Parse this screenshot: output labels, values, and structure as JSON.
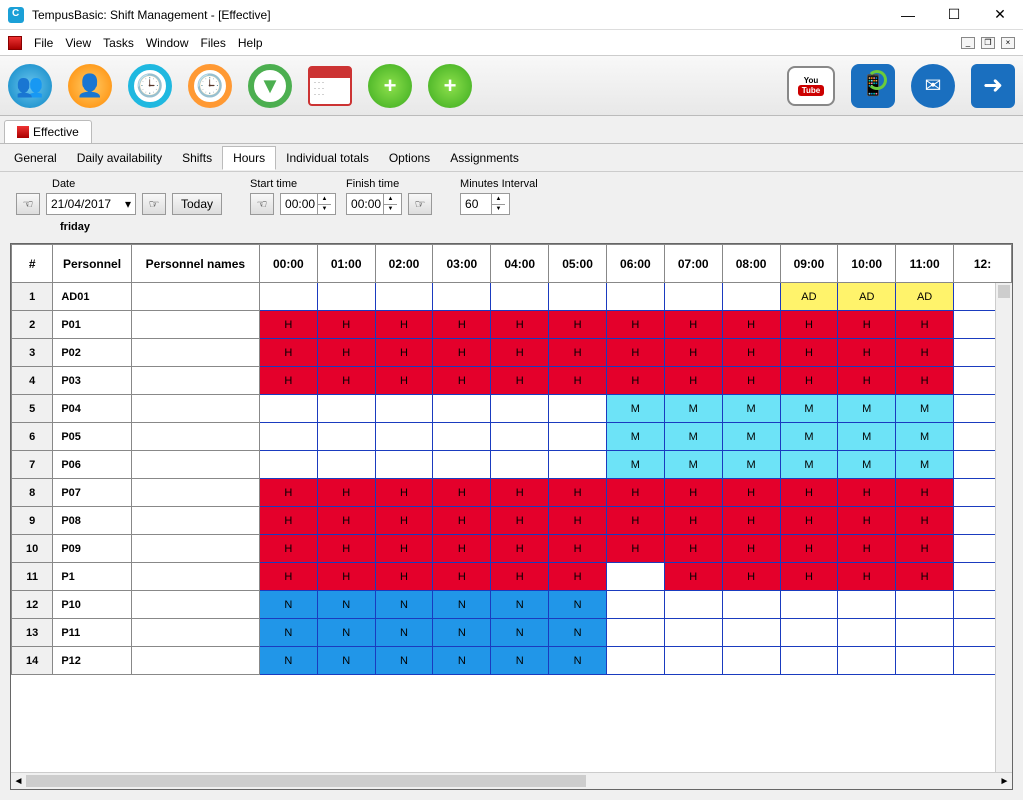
{
  "window": {
    "title": "TempusBasic: Shift Management - [Effective]"
  },
  "menubar": {
    "items": [
      "File",
      "View",
      "Tasks",
      "Window",
      "Files",
      "Help"
    ]
  },
  "docTabs": {
    "items": [
      {
        "label": "Effective"
      }
    ]
  },
  "subTabs": {
    "items": [
      "General",
      "Daily availability",
      "Shifts",
      "Hours",
      "Individual totals",
      "Options",
      "Assignments"
    ],
    "activeIndex": 3
  },
  "filter": {
    "dateLabel": "Date",
    "dateValue": "21/04/2017",
    "todayLabel": "Today",
    "dayName": "friday",
    "startLabel": "Start time",
    "startValue": "00:00",
    "finishLabel": "Finish time",
    "finishValue": "00:00",
    "intervalLabel": "Minutes Interval",
    "intervalValue": "60"
  },
  "grid": {
    "headers": {
      "rownum": "#",
      "personnel": "Personnel",
      "names": "Personnel names",
      "hours": [
        "00:00",
        "01:00",
        "02:00",
        "03:00",
        "04:00",
        "05:00",
        "06:00",
        "07:00",
        "08:00",
        "09:00",
        "10:00",
        "11:00",
        "12:"
      ]
    },
    "cellStyles": {
      "H": {
        "bg": "#e4002b"
      },
      "M": {
        "bg": "#6de3f7"
      },
      "N": {
        "bg": "#2196e8"
      },
      "AD": {
        "bg": "#fff36b"
      }
    },
    "rows": [
      {
        "n": 1,
        "p": "AD01",
        "name": "",
        "cells": [
          "",
          "",
          "",
          "",
          "",
          "",
          "",
          "",
          "",
          "AD",
          "AD",
          "AD",
          ""
        ]
      },
      {
        "n": 2,
        "p": "P01",
        "name": "",
        "cells": [
          "H",
          "H",
          "H",
          "H",
          "H",
          "H",
          "H",
          "H",
          "H",
          "H",
          "H",
          "H",
          ""
        ]
      },
      {
        "n": 3,
        "p": "P02",
        "name": "",
        "cells": [
          "H",
          "H",
          "H",
          "H",
          "H",
          "H",
          "H",
          "H",
          "H",
          "H",
          "H",
          "H",
          ""
        ]
      },
      {
        "n": 4,
        "p": "P03",
        "name": "",
        "cells": [
          "H",
          "H",
          "H",
          "H",
          "H",
          "H",
          "H",
          "H",
          "H",
          "H",
          "H",
          "H",
          ""
        ]
      },
      {
        "n": 5,
        "p": "P04",
        "name": "",
        "cells": [
          "",
          "",
          "",
          "",
          "",
          "",
          "M",
          "M",
          "M",
          "M",
          "M",
          "M",
          ""
        ]
      },
      {
        "n": 6,
        "p": "P05",
        "name": "",
        "cells": [
          "",
          "",
          "",
          "",
          "",
          "",
          "M",
          "M",
          "M",
          "M",
          "M",
          "M",
          ""
        ]
      },
      {
        "n": 7,
        "p": "P06",
        "name": "",
        "cells": [
          "",
          "",
          "",
          "",
          "",
          "",
          "M",
          "M",
          "M",
          "M",
          "M",
          "M",
          ""
        ]
      },
      {
        "n": 8,
        "p": "P07",
        "name": "",
        "cells": [
          "H",
          "H",
          "H",
          "H",
          "H",
          "H",
          "H",
          "H",
          "H",
          "H",
          "H",
          "H",
          ""
        ]
      },
      {
        "n": 9,
        "p": "P08",
        "name": "",
        "cells": [
          "H",
          "H",
          "H",
          "H",
          "H",
          "H",
          "H",
          "H",
          "H",
          "H",
          "H",
          "H",
          ""
        ]
      },
      {
        "n": 10,
        "p": "P09",
        "name": "",
        "cells": [
          "H",
          "H",
          "H",
          "H",
          "H",
          "H",
          "H",
          "H",
          "H",
          "H",
          "H",
          "H",
          ""
        ]
      },
      {
        "n": 11,
        "p": "P1",
        "name": "",
        "cells": [
          "H",
          "H",
          "H",
          "H",
          "H",
          "H",
          "",
          "H",
          "H",
          "H",
          "H",
          "H",
          ""
        ]
      },
      {
        "n": 12,
        "p": "P10",
        "name": "",
        "cells": [
          "N",
          "N",
          "N",
          "N",
          "N",
          "N",
          "",
          "",
          "",
          "",
          "",
          "",
          ""
        ]
      },
      {
        "n": 13,
        "p": "P11",
        "name": "",
        "cells": [
          "N",
          "N",
          "N",
          "N",
          "N",
          "N",
          "",
          "",
          "",
          "",
          "",
          "",
          ""
        ]
      },
      {
        "n": 14,
        "p": "P12",
        "name": "",
        "cells": [
          "N",
          "N",
          "N",
          "N",
          "N",
          "N",
          "",
          "",
          "",
          "",
          "",
          "",
          ""
        ]
      }
    ]
  }
}
